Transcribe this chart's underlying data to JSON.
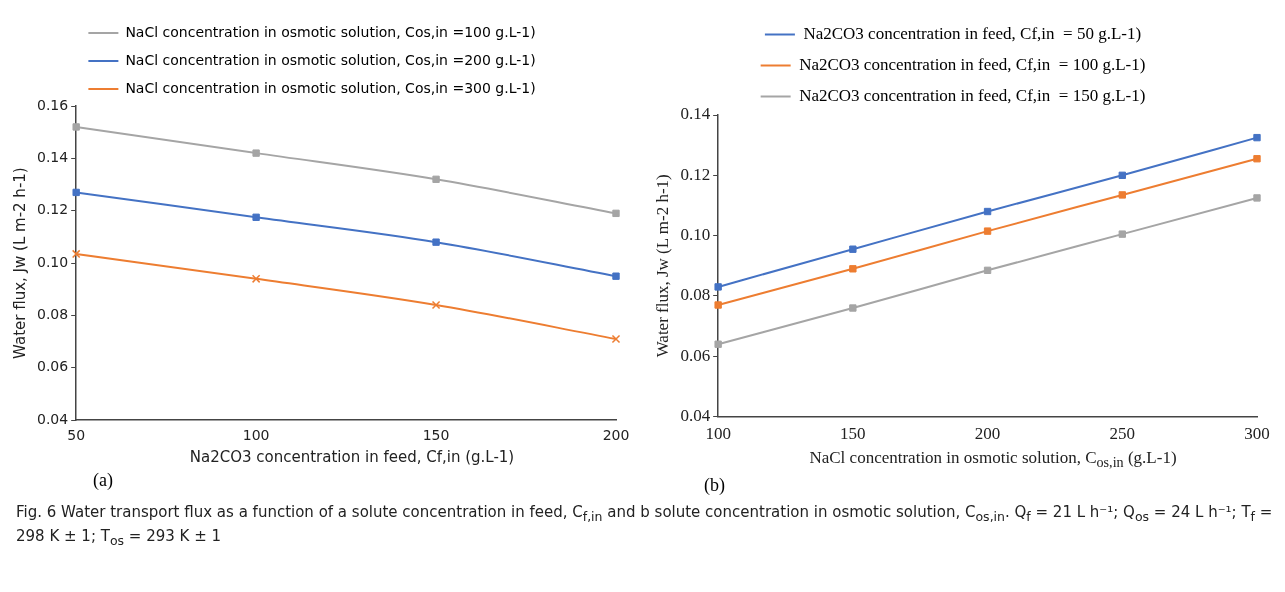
{
  "chart_data": [
    {
      "type": "line",
      "xlabel": "Na2CO3 concentration in feed, Cf,in  (g.L-1)",
      "ylabel": "Water flux, Jw (L m-2 h-1)",
      "x": [
        50,
        100,
        150,
        200
      ],
      "xlim": [
        50,
        200
      ],
      "xticks": [
        50,
        100,
        150,
        200
      ],
      "ylim": [
        0.04,
        0.16
      ],
      "yticks": [
        0.04,
        0.06,
        0.08,
        {
          "value": 0.1,
          "label": "0.10"
        },
        0.12,
        0.14,
        0.16
      ],
      "grid": false,
      "legend": "top",
      "annotations": [
        "(a)"
      ],
      "series": [
        {
          "name": "NaCl concentration in osmotic solution, Cos,in =100 g.L-1)",
          "color": "#a5a5a5",
          "marker": "square",
          "values": [
            0.152,
            0.142,
            0.132,
            0.119
          ]
        },
        {
          "name": "NaCl concentration in osmotic solution, Cos,in =200 g.L-1)",
          "color": "#4472c4",
          "marker": "square",
          "values": [
            0.127,
            0.1175,
            0.108,
            0.095
          ]
        },
        {
          "name": "NaCl concentration in osmotic solution, Cos,in =300 g.L-1)",
          "color": "#ed7d31",
          "marker": "cross",
          "values": [
            0.1035,
            0.094,
            0.084,
            0.071
          ]
        }
      ]
    },
    {
      "type": "line",
      "xlabel": "NaCl concentration in osmotic solution, C$_{os,in}$ (g.L-1)",
      "ylabel": "Water flux, Jw (L m-2 h-1)",
      "x": [
        100,
        150,
        200,
        250,
        300
      ],
      "xlim": [
        100,
        300
      ],
      "xticks": [
        100,
        150,
        200,
        250,
        300
      ],
      "ylim": [
        0.04,
        0.14
      ],
      "yticks": [
        0.04,
        0.06,
        0.08,
        {
          "value": 0.1,
          "label": "0.10"
        },
        0.12,
        0.14
      ],
      "grid": false,
      "legend": "top",
      "marker": "square",
      "annotations": [
        "(b)",
        "Fig. 6  Water transport flux as a function of a solute concentration in feed, C$_{f,in}$ and b solute concentration in osmotic solution, C$_{os,in}$. Q$_{f}$ = 21 L h⁻¹; Q$_{os}$ = 24 L h⁻¹; T$_{f}$ = 298 K ± 1; T$_{os}$ = 293 K ± 1"
      ],
      "series": [
        {
          "name": "Na2CO3 concentration in feed, Cf,in  = 50 g.L-1)",
          "color": "#4472c4",
          "values": [
            0.083,
            0.0955,
            0.108,
            0.12,
            0.1325
          ]
        },
        {
          "name": "Na2CO3 concentration in feed, Cf,in  = 100 g.L-1)",
          "color": "#ed7d31",
          "values": [
            0.077,
            0.089,
            0.1015,
            0.1135,
            0.1255
          ]
        },
        {
          "name": "Na2CO3 concentration in feed, Cf,in  = 150 g.L-1)",
          "color": "#a5a5a5",
          "values": [
            0.064,
            0.076,
            0.0885,
            0.1005,
            0.1125
          ]
        }
      ]
    }
  ]
}
